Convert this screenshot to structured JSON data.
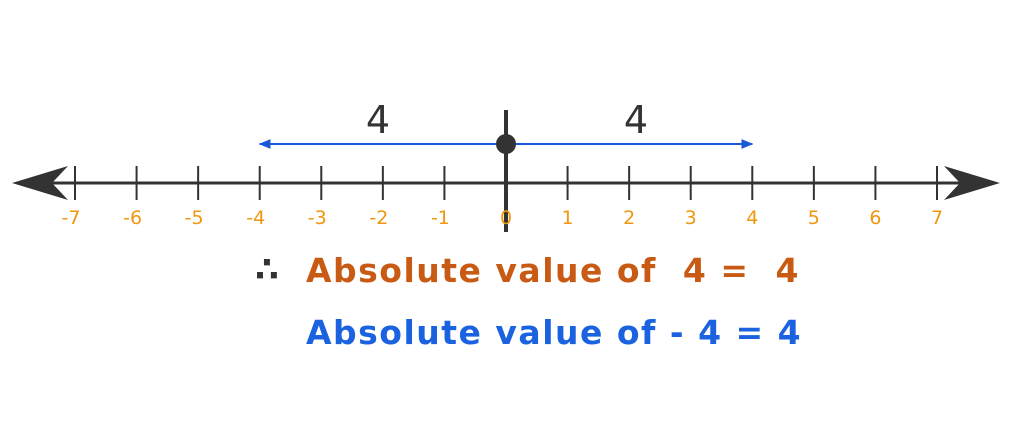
{
  "number_line": {
    "ticks": [
      "-7",
      "-6",
      "-5",
      "-4",
      "-3",
      "-2",
      "-1",
      "0",
      "1",
      "2",
      "3",
      "4",
      "5",
      "6",
      "7"
    ],
    "tick_values": [
      -7,
      -6,
      -5,
      -4,
      -3,
      -2,
      -1,
      0,
      1,
      2,
      3,
      4,
      5,
      6,
      7
    ],
    "range": [
      -7,
      7
    ],
    "origin": 0,
    "left_distance_label": "4",
    "right_distance_label": "4",
    "left_arrow_to": -4,
    "right_arrow_to": 4
  },
  "colors": {
    "axis": "#333333",
    "tick_labels": "#f0960f",
    "distance_arrows": "#1a56d8",
    "statement_1": "#c85a14",
    "statement_2": "#1a62e0"
  },
  "statements": {
    "therefore_symbol": "∴",
    "line_1": "Absolute value of  4 =  4",
    "line_2": "Absolute value of - 4 = 4"
  }
}
